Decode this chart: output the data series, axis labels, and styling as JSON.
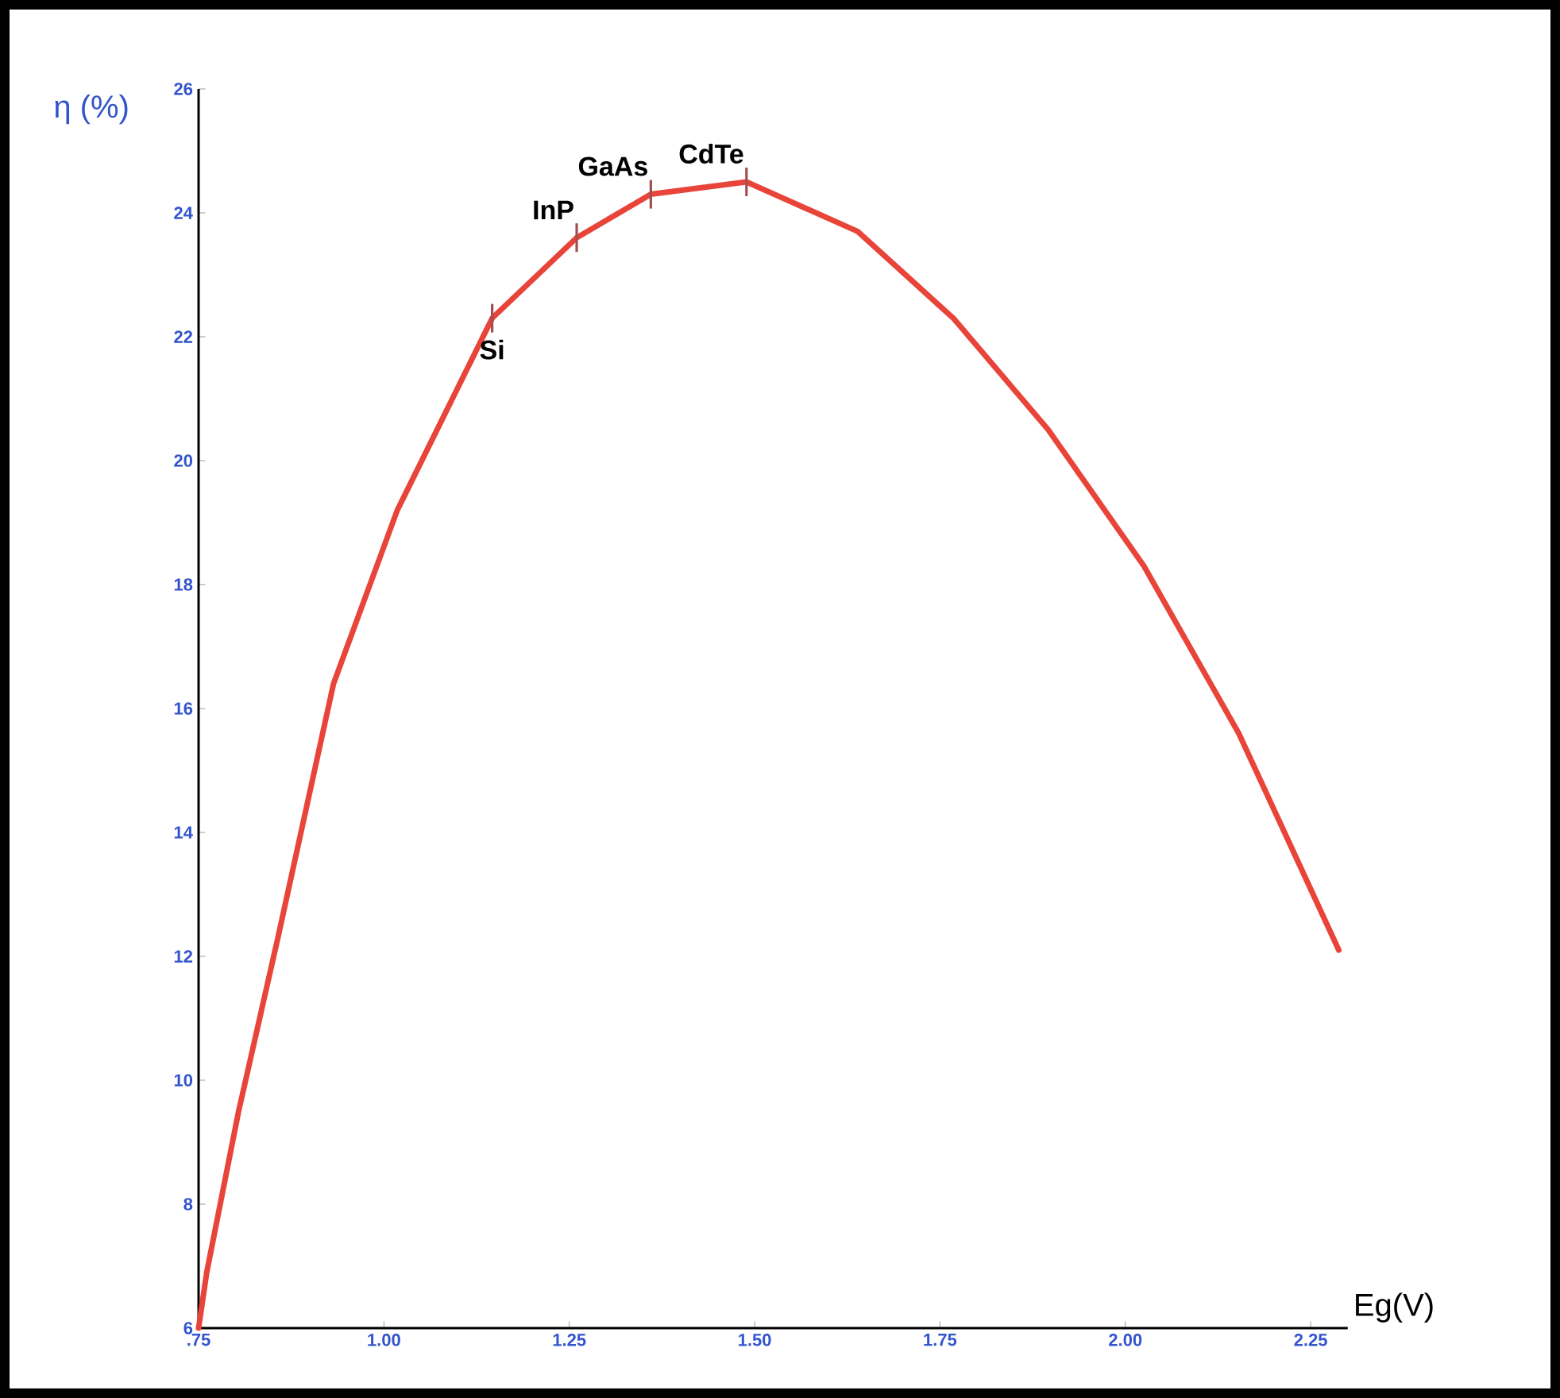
{
  "chart_data": {
    "type": "line",
    "xlabel": "Eg(V)",
    "ylabel": "η (%)",
    "x": [
      0.75,
      0.761,
      0.804,
      0.857,
      0.932,
      1.018,
      1.146,
      1.26,
      1.36,
      1.489,
      1.639,
      1.768,
      1.896,
      2.025,
      2.153,
      2.288
    ],
    "values": [
      6.0,
      6.9,
      9.5,
      12.3,
      16.4,
      19.2,
      22.3,
      23.6,
      24.3,
      24.5,
      23.7,
      22.3,
      20.5,
      18.3,
      15.6,
      12.1
    ],
    "color": "#e8443a",
    "marker": "none",
    "line_style": "solid",
    "grid": false,
    "xlim": [
      0.75,
      2.3
    ],
    "ylim": [
      6,
      26
    ],
    "xticks": [
      {
        "value": 0.75,
        "label": ".75"
      },
      {
        "value": 1.0,
        "label": "1.00"
      },
      {
        "value": 1.25,
        "label": "1.25"
      },
      {
        "value": 1.5,
        "label": "1.50"
      },
      {
        "value": 1.75,
        "label": "1.75"
      },
      {
        "value": 2.0,
        "label": "2.00"
      },
      {
        "value": 2.25,
        "label": "2.25"
      }
    ],
    "yticks": [
      6,
      8,
      10,
      12,
      14,
      16,
      18,
      20,
      22,
      24,
      26
    ],
    "annotations": [
      {
        "text": "Si",
        "x": 1.146,
        "y": 22.3
      },
      {
        "text": "InP",
        "x": 1.26,
        "y": 23.6
      },
      {
        "text": "GaAs",
        "x": 1.36,
        "y": 24.3
      },
      {
        "text": "CdTe",
        "x": 1.489,
        "y": 24.5
      }
    ]
  }
}
